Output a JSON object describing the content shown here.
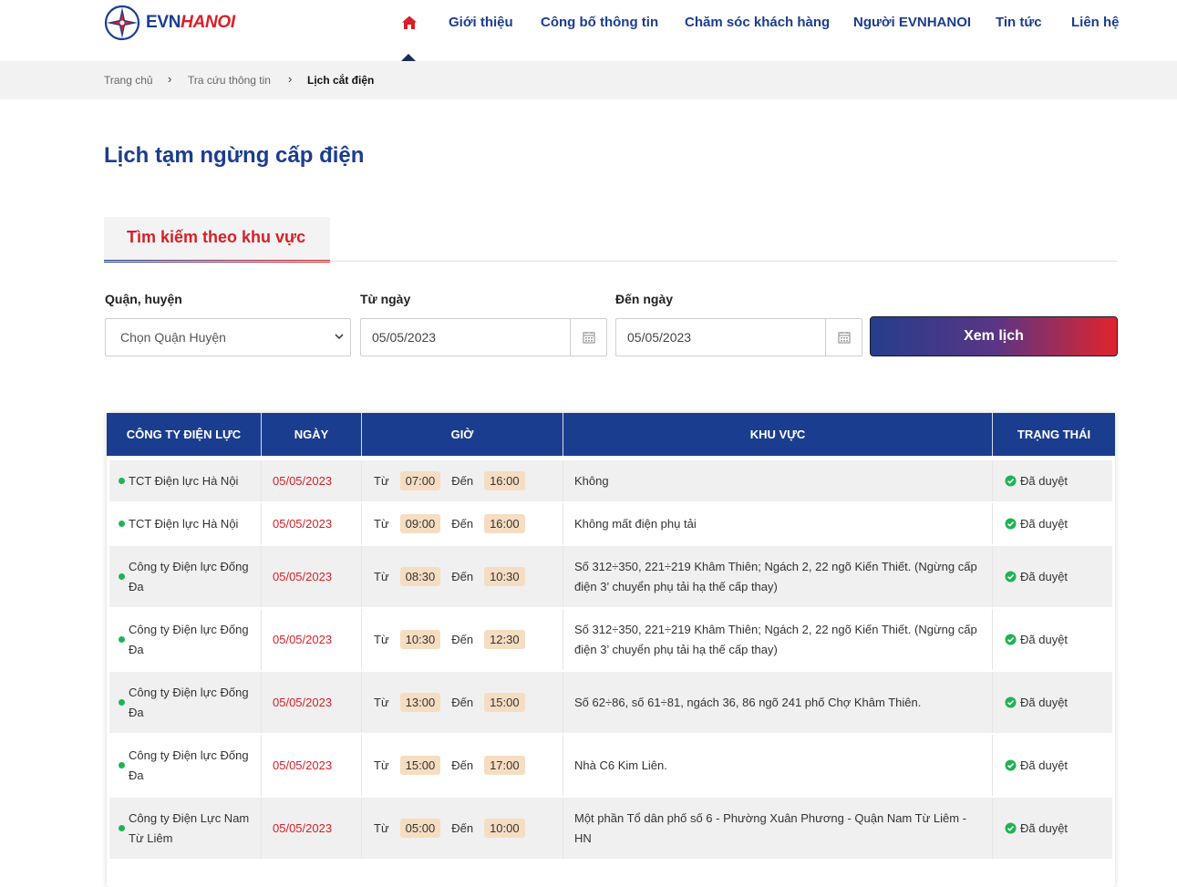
{
  "brand": {
    "logo_evn": "EVN",
    "logo_hanoi": "HANOI"
  },
  "nav": {
    "items": [
      {
        "label": "Giới thiệu"
      },
      {
        "label": "Công bố thông tin"
      },
      {
        "label": "Chăm sóc khách hàng"
      },
      {
        "label": "Người EVNHANOI"
      },
      {
        "label": "Tin tức"
      },
      {
        "label": "Liên hệ"
      }
    ]
  },
  "breadcrumb": {
    "home": "Trang chủ",
    "lookup": "Tra cứu thông tin",
    "current": "Lịch cắt điện"
  },
  "page": {
    "title": "Lịch tạm ngừng cấp điện"
  },
  "tabs": {
    "area_search": "Tìm kiếm theo khu vực"
  },
  "form": {
    "district_label": "Quận, huyện",
    "district_placeholder": "Chọn Quận Huyện",
    "from_label": "Từ ngày",
    "from_value": "05/05/2023",
    "to_label": "Đến ngày",
    "to_value": "05/05/2023",
    "submit": "Xem lịch"
  },
  "table": {
    "headers": [
      "CÔNG TY ĐIỆN LỰC",
      "NGÀY",
      "GIỜ",
      "KHU VỰC",
      "TRẠNG THÁI"
    ],
    "from_word": "Từ",
    "to_word": "Đến",
    "rows": [
      {
        "company": "TCT Điện lực Hà Nội",
        "date": "05/05/2023",
        "start": "07:00",
        "end": "16:00",
        "area": "Không",
        "status": "Đã duyệt"
      },
      {
        "company": "TCT Điện lực Hà Nội",
        "date": "05/05/2023",
        "start": "09:00",
        "end": "16:00",
        "area": "Không mất điện phụ tải",
        "status": "Đã duyệt"
      },
      {
        "company": "Công ty Điện lực Đống Đa",
        "date": "05/05/2023",
        "start": "08:30",
        "end": "10:30",
        "area": "Số 312÷350, 221÷219 Khâm Thiên; Ngách 2, 22 ngõ Kiến Thiết. (Ngừng cấp điện 3’ chuyển phụ tải hạ thế cấp thay)",
        "status": "Đã duyệt"
      },
      {
        "company": "Công ty Điện lực Đống Đa",
        "date": "05/05/2023",
        "start": "10:30",
        "end": "12:30",
        "area": "Số 312÷350, 221÷219 Khâm Thiên; Ngách 2, 22 ngõ Kiến Thiết. (Ngừng cấp điện 3’ chuyển phụ tải hạ thế cấp thay)",
        "status": "Đã duyệt"
      },
      {
        "company": "Công ty Điện lực Đống Đa",
        "date": "05/05/2023",
        "start": "13:00",
        "end": "15:00",
        "area": "Số 62÷86, số 61÷81, ngách 36, 86 ngõ 241 phố Chợ Khâm Thiên.",
        "status": "Đã duyệt"
      },
      {
        "company": "Công ty Điện lực Đống Đa",
        "date": "05/05/2023",
        "start": "15:00",
        "end": "17:00",
        "area": "Nhà C6 Kim Liên.",
        "status": "Đã duyệt"
      },
      {
        "company": "Công ty Điện Lực Nam Từ Liêm",
        "date": "05/05/2023",
        "start": "05:00",
        "end": "10:00",
        "area": "Một phần Tổ dân phố số 6 - Phường Xuân Phương - Quận Nam Từ Liêm - HN",
        "status": "Đã duyệt"
      }
    ]
  },
  "colors": {
    "primary": "#1b3d8f",
    "accent": "#d91f27",
    "status_ok": "#1fb355",
    "time_pill": "#f6ddc1"
  }
}
